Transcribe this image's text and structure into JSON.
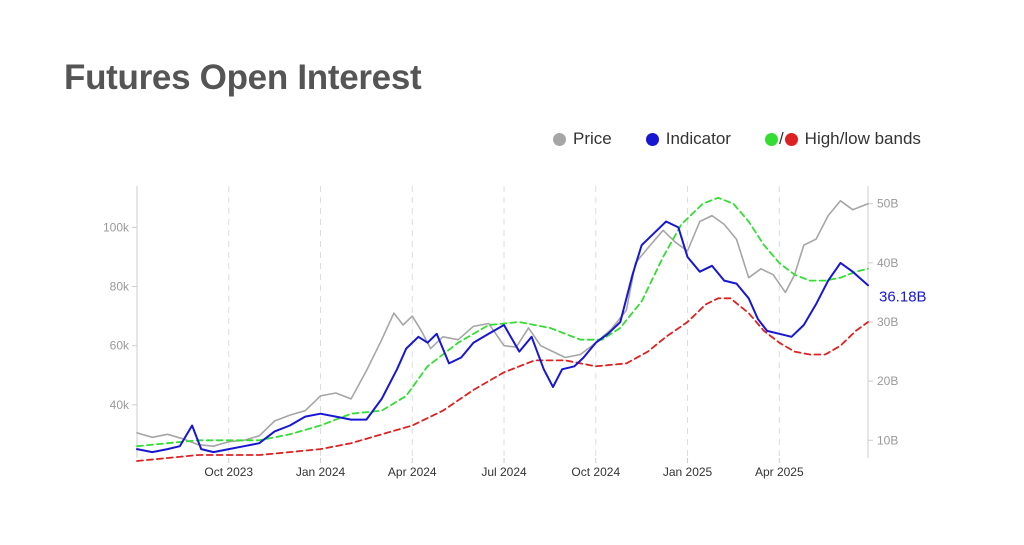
{
  "title": "Futures Open Interest",
  "legend": {
    "price": "Price",
    "indicator": "Indicator",
    "slash": "/",
    "bands": "High/low bands"
  },
  "colors": {
    "price": "#a6a6a6",
    "indicator": "#1717d1",
    "high_band": "#33dd33",
    "low_band": "#dd2222",
    "grid": "#dddddd",
    "axis": "#cccccc"
  },
  "chart_data": {
    "type": "line",
    "x_ticks": [
      {
        "label": "Oct 2023",
        "t": 3
      },
      {
        "label": "Jan 2024",
        "t": 6
      },
      {
        "label": "Apr 2024",
        "t": 9
      },
      {
        "label": "Jul 2024",
        "t": 12
      },
      {
        "label": "Oct 2024",
        "t": 15
      },
      {
        "label": "Jan 2025",
        "t": 18
      },
      {
        "label": "Apr 2025",
        "t": 21
      }
    ],
    "xlim": [
      0,
      23.9
    ],
    "y_left": {
      "ticks": [
        "40k",
        "60k",
        "80k",
        "100k"
      ],
      "tick_values": [
        40000,
        60000,
        80000,
        100000
      ],
      "range": [
        22000,
        114000
      ]
    },
    "y_right": {
      "ticks": [
        "10B",
        "20B",
        "30B",
        "40B",
        "50B"
      ],
      "tick_values": [
        10,
        20,
        30,
        40,
        50
      ],
      "range": [
        7,
        53
      ]
    },
    "last_value_label": "36.18B",
    "series": [
      {
        "name": "Price",
        "axis": "left",
        "points": [
          [
            0,
            30500
          ],
          [
            0.5,
            29000
          ],
          [
            1.0,
            30000
          ],
          [
            1.5,
            28500
          ],
          [
            2.0,
            26500
          ],
          [
            2.5,
            26000
          ],
          [
            3.0,
            27500
          ],
          [
            3.5,
            28000
          ],
          [
            4.0,
            29500
          ],
          [
            4.5,
            34500
          ],
          [
            5.0,
            36500
          ],
          [
            5.5,
            38000
          ],
          [
            6.0,
            43000
          ],
          [
            6.5,
            44000
          ],
          [
            7.0,
            42000
          ],
          [
            7.5,
            51500
          ],
          [
            8.0,
            62000
          ],
          [
            8.4,
            71000
          ],
          [
            8.7,
            67000
          ],
          [
            9.0,
            70000
          ],
          [
            9.3,
            65000
          ],
          [
            9.6,
            59000
          ],
          [
            10.0,
            63000
          ],
          [
            10.5,
            62000
          ],
          [
            11.0,
            66500
          ],
          [
            11.5,
            67500
          ],
          [
            12.0,
            60000
          ],
          [
            12.4,
            59500
          ],
          [
            12.8,
            66000
          ],
          [
            13.2,
            60000
          ],
          [
            13.6,
            58000
          ],
          [
            14.0,
            56000
          ],
          [
            14.5,
            57000
          ],
          [
            15.0,
            61000
          ],
          [
            15.5,
            65500
          ],
          [
            16.0,
            72000
          ],
          [
            16.3,
            88000
          ],
          [
            16.7,
            93000
          ],
          [
            17.2,
            99000
          ],
          [
            17.6,
            95000
          ],
          [
            18.0,
            92000
          ],
          [
            18.4,
            102000
          ],
          [
            18.8,
            104000
          ],
          [
            19.2,
            101000
          ],
          [
            19.6,
            96000
          ],
          [
            20.0,
            83000
          ],
          [
            20.4,
            86000
          ],
          [
            20.8,
            84000
          ],
          [
            21.2,
            78000
          ],
          [
            21.5,
            84000
          ],
          [
            21.8,
            94000
          ],
          [
            22.2,
            96000
          ],
          [
            22.6,
            104000
          ],
          [
            23.0,
            109000
          ],
          [
            23.4,
            106000
          ],
          [
            23.9,
            108000
          ]
        ]
      },
      {
        "name": "Indicator",
        "axis": "right",
        "points": [
          [
            0,
            8.5
          ],
          [
            0.5,
            8.0
          ],
          [
            1.0,
            8.5
          ],
          [
            1.4,
            9.0
          ],
          [
            1.8,
            12.5
          ],
          [
            2.1,
            8.5
          ],
          [
            2.5,
            8.0
          ],
          [
            3.0,
            8.5
          ],
          [
            3.5,
            9.0
          ],
          [
            4.0,
            9.5
          ],
          [
            4.5,
            11.5
          ],
          [
            5.0,
            12.5
          ],
          [
            5.5,
            14.0
          ],
          [
            6.0,
            14.5
          ],
          [
            6.5,
            14.0
          ],
          [
            7.0,
            13.5
          ],
          [
            7.5,
            13.5
          ],
          [
            8.0,
            17.0
          ],
          [
            8.5,
            22.0
          ],
          [
            8.8,
            25.5
          ],
          [
            9.2,
            27.5
          ],
          [
            9.5,
            26.5
          ],
          [
            9.8,
            28.0
          ],
          [
            10.2,
            23.0
          ],
          [
            10.6,
            24.0
          ],
          [
            11.0,
            26.5
          ],
          [
            11.5,
            28.0
          ],
          [
            12.0,
            29.5
          ],
          [
            12.5,
            25.0
          ],
          [
            12.9,
            27.5
          ],
          [
            13.3,
            22.0
          ],
          [
            13.6,
            19.0
          ],
          [
            13.9,
            22.0
          ],
          [
            14.3,
            22.5
          ],
          [
            14.6,
            24.0
          ],
          [
            15.0,
            26.5
          ],
          [
            15.4,
            28.0
          ],
          [
            15.8,
            30.0
          ],
          [
            16.2,
            38.0
          ],
          [
            16.5,
            43.0
          ],
          [
            16.9,
            45.0
          ],
          [
            17.3,
            47.0
          ],
          [
            17.7,
            46.0
          ],
          [
            18.0,
            41.0
          ],
          [
            18.4,
            38.5
          ],
          [
            18.8,
            39.5
          ],
          [
            19.2,
            37.0
          ],
          [
            19.6,
            36.5
          ],
          [
            20.0,
            34.0
          ],
          [
            20.3,
            30.5
          ],
          [
            20.6,
            28.5
          ],
          [
            21.0,
            28.0
          ],
          [
            21.4,
            27.5
          ],
          [
            21.8,
            29.5
          ],
          [
            22.2,
            33.0
          ],
          [
            22.6,
            37.0
          ],
          [
            23.0,
            40.0
          ],
          [
            23.4,
            38.5
          ],
          [
            23.9,
            36.2
          ]
        ]
      },
      {
        "name": "High band",
        "axis": "right",
        "points": [
          [
            0,
            9.0
          ],
          [
            1.0,
            9.5
          ],
          [
            2.0,
            10.0
          ],
          [
            3.0,
            10.0
          ],
          [
            4.0,
            10.0
          ],
          [
            5.0,
            11.0
          ],
          [
            6.0,
            12.5
          ],
          [
            7.0,
            14.5
          ],
          [
            8.0,
            15.0
          ],
          [
            8.8,
            17.5
          ],
          [
            9.5,
            22.5
          ],
          [
            10.5,
            26.5
          ],
          [
            11.5,
            29.5
          ],
          [
            12.5,
            30.0
          ],
          [
            13.5,
            29.0
          ],
          [
            14.5,
            27.0
          ],
          [
            15.2,
            27.0
          ],
          [
            15.8,
            29.0
          ],
          [
            16.5,
            33.5
          ],
          [
            17.2,
            41.0
          ],
          [
            17.8,
            46.5
          ],
          [
            18.5,
            50.0
          ],
          [
            19.0,
            51.0
          ],
          [
            19.5,
            50.0
          ],
          [
            20.0,
            47.0
          ],
          [
            20.5,
            43.0
          ],
          [
            21.0,
            40.0
          ],
          [
            21.5,
            38.0
          ],
          [
            22.0,
            37.0
          ],
          [
            22.5,
            37.0
          ],
          [
            23.0,
            37.5
          ],
          [
            23.5,
            38.5
          ],
          [
            23.9,
            39.0
          ]
        ]
      },
      {
        "name": "Low band",
        "axis": "right",
        "points": [
          [
            0,
            6.5
          ],
          [
            1.0,
            7.0
          ],
          [
            2.0,
            7.5
          ],
          [
            3.0,
            7.5
          ],
          [
            4.0,
            7.5
          ],
          [
            5.0,
            8.0
          ],
          [
            6.0,
            8.5
          ],
          [
            7.0,
            9.5
          ],
          [
            8.0,
            11.0
          ],
          [
            9.0,
            12.5
          ],
          [
            10.0,
            15.0
          ],
          [
            11.0,
            18.5
          ],
          [
            12.0,
            21.5
          ],
          [
            13.0,
            23.5
          ],
          [
            14.0,
            23.5
          ],
          [
            15.0,
            22.5
          ],
          [
            16.0,
            23.0
          ],
          [
            16.7,
            25.0
          ],
          [
            17.3,
            27.5
          ],
          [
            18.0,
            30.0
          ],
          [
            18.6,
            33.0
          ],
          [
            19.0,
            34.0
          ],
          [
            19.4,
            34.0
          ],
          [
            20.0,
            31.5
          ],
          [
            20.5,
            28.5
          ],
          [
            21.0,
            26.5
          ],
          [
            21.5,
            25.0
          ],
          [
            22.0,
            24.5
          ],
          [
            22.5,
            24.5
          ],
          [
            23.0,
            26.0
          ],
          [
            23.5,
            28.5
          ],
          [
            23.9,
            30.0
          ]
        ]
      }
    ],
    "grid": "vertical dashed at x ticks",
    "legend_position": "top-right"
  }
}
